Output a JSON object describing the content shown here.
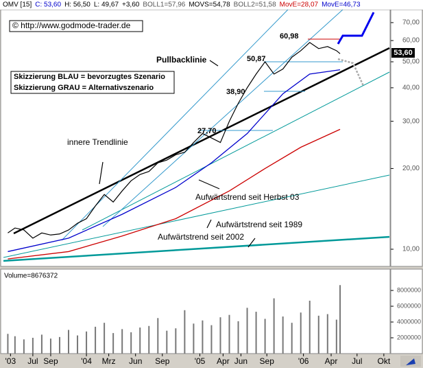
{
  "chart_data": [
    {
      "type": "line",
      "header": [
        {
          "text": "OMV [15]",
          "color": "#000000"
        },
        {
          "text": "C: 53,60",
          "color": "#0000cc"
        },
        {
          "text": "H: 56,50",
          "color": "#000000"
        },
        {
          "text": "L: 49,67",
          "color": "#000000"
        },
        {
          "text": "+3,60",
          "color": "#000000"
        },
        {
          "text": "BOLL1=57,96",
          "color": "#555555"
        },
        {
          "text": "MOVS=54,78",
          "color": "#000000"
        },
        {
          "text": "BOLL2=51,58",
          "color": "#555555"
        },
        {
          "text": "MovE=28,07",
          "color": "#cc0000"
        },
        {
          "text": "MovE=46,73",
          "color": "#0000cc"
        }
      ],
      "annotations": [
        "© http://www.godmode-trader.de",
        "Pullbacklinie",
        "Skizzierung BLAU = bevorzugtes Szenario",
        "Skizzierung GRAU = Alternativszenario",
        "innere Trendlinie",
        "Aufwärtstrend seit Herbst 03",
        "Aufwärtstrend seit 1989",
        "Aufwärtstrend seit 2002",
        "60,98",
        "50,87",
        "38,90",
        "27,70"
      ],
      "last_price": "53,60",
      "log_scale": true,
      "series": [
        {
          "name": "OMV",
          "color": "#000000",
          "x": [
            3.2,
            4,
            5,
            6,
            7,
            8,
            9,
            10,
            11,
            12,
            13,
            14,
            15,
            16,
            17,
            18,
            19,
            20,
            21,
            22,
            23,
            24,
            25,
            26,
            27,
            28,
            29,
            30,
            31,
            32,
            33,
            34,
            35,
            36,
            37,
            38,
            39,
            40,
            40.4
          ],
          "values": [
            11.5,
            12,
            11.8,
            11,
            11.5,
            11.3,
            11.4,
            11.8,
            12.5,
            13,
            14.5,
            16,
            15,
            16.5,
            18,
            19,
            19.5,
            21,
            21.5,
            22.5,
            23,
            25,
            27,
            26,
            25,
            30,
            35,
            40,
            45,
            50,
            45,
            47,
            52,
            55,
            59,
            56,
            57,
            55,
            53.6
          ]
        },
        {
          "name": "MovE=28,07",
          "color": "#cc0000",
          "x": [
            3.2,
            10,
            16,
            22,
            28,
            32,
            36,
            40.4
          ],
          "values": [
            9.2,
            9.8,
            11.2,
            13,
            16.5,
            20,
            24,
            28
          ]
        },
        {
          "name": "MovE=46,73",
          "color": "#0000cc",
          "x": [
            3.2,
            10,
            16,
            22,
            26,
            30,
            34,
            37,
            40.4
          ],
          "values": [
            9.8,
            11,
            13.5,
            17,
            21,
            27,
            38,
            45,
            46.7
          ]
        }
      ],
      "xlim": [
        2.4,
        46
      ],
      "xticks": [
        {
          "value": 3.5,
          "label": "'03"
        },
        {
          "value": 6,
          "label": "Jul"
        },
        {
          "value": 8,
          "label": "Sep"
        },
        {
          "value": 12,
          "label": "'04"
        },
        {
          "value": 14.5,
          "label": "Mrz"
        },
        {
          "value": 17.5,
          "label": "Jun"
        },
        {
          "value": 20.5,
          "label": "Sep"
        },
        {
          "value": 24.7,
          "label": "'05"
        },
        {
          "value": 27.3,
          "label": "Apr"
        },
        {
          "value": 29.3,
          "label": "Jun"
        },
        {
          "value": 32.2,
          "label": "Sep"
        },
        {
          "value": 36.3,
          "label": "'06"
        },
        {
          "value": 39.4,
          "label": "Apr"
        },
        {
          "value": 42.3,
          "label": "Jul"
        },
        {
          "value": 45.3,
          "label": "Okt"
        }
      ],
      "ylim": [
        8.63,
        85
      ],
      "yticks": [
        {
          "value": 10,
          "label": "10,00"
        },
        {
          "value": 20,
          "label": "20,00"
        },
        {
          "value": 30,
          "label": "30,00"
        },
        {
          "value": 40,
          "label": "40,00"
        },
        {
          "value": 50,
          "label": "50,00"
        },
        {
          "value": 60,
          "label": "60,00"
        },
        {
          "value": 70,
          "label": "70,00"
        }
      ]
    },
    {
      "type": "bar",
      "title": "Volume=8676372",
      "color": "#777777",
      "x": [
        3.2,
        4,
        5,
        6,
        7,
        8,
        9,
        10,
        11,
        12,
        13,
        14,
        15,
        16,
        17,
        18,
        19,
        20,
        21,
        22,
        23,
        24,
        25,
        26,
        27,
        28,
        29,
        30,
        31,
        32,
        33,
        34,
        35,
        36,
        37,
        38,
        39,
        40,
        40.4
      ],
      "values": [
        2500000,
        2200000,
        1800000,
        2000000,
        2400000,
        1900000,
        2100000,
        3000000,
        2300000,
        2800000,
        3400000,
        3900000,
        2600000,
        3100000,
        2700000,
        3300000,
        3500000,
        4500000,
        2900000,
        3200000,
        5500000,
        3800000,
        4200000,
        3600000,
        4600000,
        4900000,
        4100000,
        5800000,
        5300000,
        4400000,
        7000000,
        4700000,
        3900000,
        5200000,
        6700000,
        4800000,
        5000000,
        4300000,
        8676372
      ],
      "ylim": [
        0,
        10700000
      ],
      "yticks": [
        2000000,
        4000000,
        6000000,
        8000000
      ]
    }
  ]
}
